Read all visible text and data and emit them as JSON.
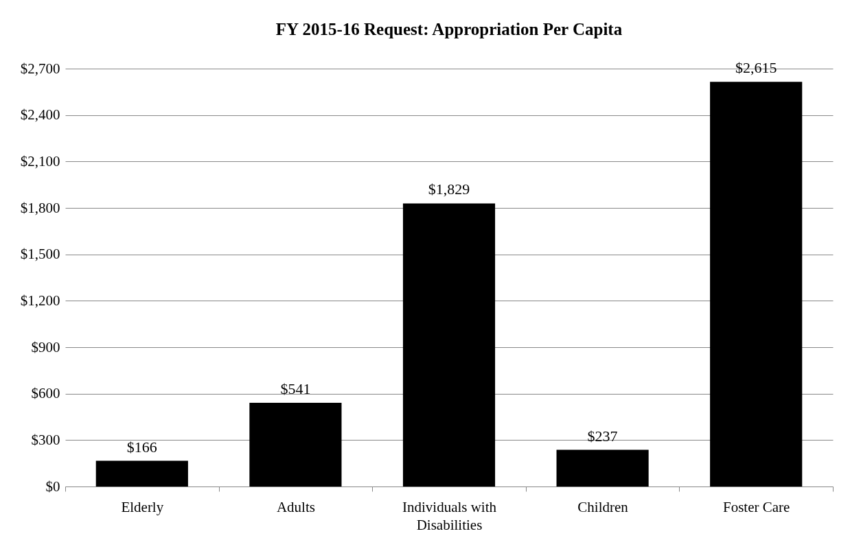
{
  "chart_data": {
    "type": "bar",
    "title": "FY 2015-16 Request: Appropriation Per Capita",
    "categories": [
      "Elderly",
      "Adults",
      "Individuals with Disabilities",
      "Children",
      "Foster Care"
    ],
    "values": [
      166,
      541,
      1829,
      237,
      2615
    ],
    "value_labels": [
      "$166",
      "$541",
      "$1,829",
      "$237",
      "$2,615"
    ],
    "color": "#000000",
    "ylim": [
      0,
      2700
    ],
    "yticks": [
      {
        "value": 0,
        "label": "$0"
      },
      {
        "value": 300,
        "label": "$300"
      },
      {
        "value": 600,
        "label": "$600"
      },
      {
        "value": 900,
        "label": "$900"
      },
      {
        "value": 1200,
        "label": "$1,200"
      },
      {
        "value": 1500,
        "label": "$1,500"
      },
      {
        "value": 1800,
        "label": "$1,800"
      },
      {
        "value": 2100,
        "label": "$2,100"
      },
      {
        "value": 2400,
        "label": "$2,400"
      },
      {
        "value": 2700,
        "label": "$2,700"
      }
    ],
    "grid": "y"
  }
}
